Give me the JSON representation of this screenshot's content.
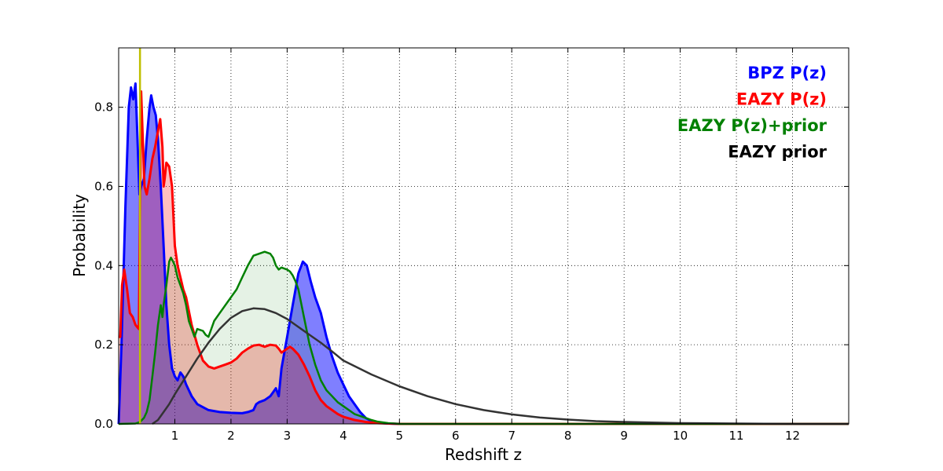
{
  "chart_data": {
    "type": "area",
    "title": "",
    "xlabel": "Redshift z",
    "ylabel": "Probability",
    "xlim": [
      0,
      13
    ],
    "ylim": [
      0,
      0.95
    ],
    "grid": true,
    "legend_position": "top-right",
    "x_ticks": [
      1,
      2,
      3,
      4,
      5,
      6,
      7,
      8,
      9,
      10,
      11,
      12
    ],
    "y_ticks": [
      0.0,
      0.2,
      0.4,
      0.6,
      0.8
    ],
    "y_tick_labels": [
      "0.0",
      "0.2",
      "0.4",
      "0.6",
      "0.8"
    ],
    "vertical_line": {
      "x": 0.38,
      "color": "#bfbf00"
    },
    "series": [
      {
        "name": "BPZ P(z)",
        "color": "#0000ff",
        "fill_alpha": 0.5,
        "filled": true,
        "points": [
          [
            0,
            0
          ],
          [
            0.05,
            0.2
          ],
          [
            0.12,
            0.55
          ],
          [
            0.18,
            0.8
          ],
          [
            0.22,
            0.85
          ],
          [
            0.26,
            0.82
          ],
          [
            0.3,
            0.86
          ],
          [
            0.34,
            0.7
          ],
          [
            0.37,
            0.58
          ],
          [
            0.4,
            0.6
          ],
          [
            0.45,
            0.62
          ],
          [
            0.5,
            0.72
          ],
          [
            0.55,
            0.8
          ],
          [
            0.58,
            0.83
          ],
          [
            0.62,
            0.8
          ],
          [
            0.66,
            0.78
          ],
          [
            0.7,
            0.72
          ],
          [
            0.75,
            0.6
          ],
          [
            0.8,
            0.45
          ],
          [
            0.85,
            0.3
          ],
          [
            0.9,
            0.2
          ],
          [
            0.95,
            0.14
          ],
          [
            1.0,
            0.12
          ],
          [
            1.05,
            0.11
          ],
          [
            1.1,
            0.13
          ],
          [
            1.15,
            0.12
          ],
          [
            1.2,
            0.1
          ],
          [
            1.3,
            0.07
          ],
          [
            1.4,
            0.05
          ],
          [
            1.6,
            0.035
          ],
          [
            1.8,
            0.03
          ],
          [
            2.0,
            0.028
          ],
          [
            2.2,
            0.027
          ],
          [
            2.3,
            0.03
          ],
          [
            2.4,
            0.035
          ],
          [
            2.45,
            0.05
          ],
          [
            2.5,
            0.055
          ],
          [
            2.6,
            0.06
          ],
          [
            2.7,
            0.07
          ],
          [
            2.75,
            0.08
          ],
          [
            2.8,
            0.09
          ],
          [
            2.85,
            0.07
          ],
          [
            2.9,
            0.14
          ],
          [
            3.0,
            0.22
          ],
          [
            3.1,
            0.3
          ],
          [
            3.2,
            0.38
          ],
          [
            3.28,
            0.41
          ],
          [
            3.35,
            0.4
          ],
          [
            3.42,
            0.36
          ],
          [
            3.5,
            0.32
          ],
          [
            3.6,
            0.28
          ],
          [
            3.7,
            0.22
          ],
          [
            3.8,
            0.17
          ],
          [
            3.9,
            0.13
          ],
          [
            4.0,
            0.1
          ],
          [
            4.1,
            0.07
          ],
          [
            4.2,
            0.05
          ],
          [
            4.3,
            0.03
          ],
          [
            4.4,
            0.015
          ],
          [
            4.5,
            0.007
          ],
          [
            4.6,
            0.003
          ],
          [
            4.8,
            0.001
          ],
          [
            5.0,
            0
          ],
          [
            13,
            0
          ]
        ]
      },
      {
        "name": "EAZY P(z)",
        "color": "#ff0000",
        "fill_alpha": 0.25,
        "filled": true,
        "points": [
          [
            0,
            0.22
          ],
          [
            0.03,
            0.22
          ],
          [
            0.06,
            0.35
          ],
          [
            0.1,
            0.39
          ],
          [
            0.15,
            0.34
          ],
          [
            0.2,
            0.28
          ],
          [
            0.25,
            0.27
          ],
          [
            0.3,
            0.25
          ],
          [
            0.36,
            0.24
          ],
          [
            0.4,
            0.84
          ],
          [
            0.43,
            0.72
          ],
          [
            0.46,
            0.6
          ],
          [
            0.5,
            0.58
          ],
          [
            0.55,
            0.62
          ],
          [
            0.6,
            0.67
          ],
          [
            0.65,
            0.7
          ],
          [
            0.7,
            0.74
          ],
          [
            0.74,
            0.77
          ],
          [
            0.78,
            0.7
          ],
          [
            0.8,
            0.6
          ],
          [
            0.82,
            0.62
          ],
          [
            0.85,
            0.66
          ],
          [
            0.9,
            0.65
          ],
          [
            0.95,
            0.6
          ],
          [
            1.0,
            0.45
          ],
          [
            1.05,
            0.4
          ],
          [
            1.1,
            0.37
          ],
          [
            1.15,
            0.34
          ],
          [
            1.2,
            0.32
          ],
          [
            1.3,
            0.25
          ],
          [
            1.4,
            0.2
          ],
          [
            1.5,
            0.16
          ],
          [
            1.6,
            0.145
          ],
          [
            1.7,
            0.14
          ],
          [
            1.8,
            0.145
          ],
          [
            1.9,
            0.15
          ],
          [
            2.0,
            0.155
          ],
          [
            2.1,
            0.165
          ],
          [
            2.2,
            0.18
          ],
          [
            2.3,
            0.19
          ],
          [
            2.4,
            0.198
          ],
          [
            2.5,
            0.2
          ],
          [
            2.6,
            0.195
          ],
          [
            2.7,
            0.2
          ],
          [
            2.8,
            0.198
          ],
          [
            2.85,
            0.19
          ],
          [
            2.9,
            0.18
          ],
          [
            3.0,
            0.19
          ],
          [
            3.05,
            0.195
          ],
          [
            3.1,
            0.19
          ],
          [
            3.2,
            0.175
          ],
          [
            3.3,
            0.15
          ],
          [
            3.4,
            0.12
          ],
          [
            3.5,
            0.085
          ],
          [
            3.6,
            0.06
          ],
          [
            3.7,
            0.045
          ],
          [
            3.8,
            0.035
          ],
          [
            3.9,
            0.025
          ],
          [
            4.0,
            0.018
          ],
          [
            4.2,
            0.01
          ],
          [
            4.4,
            0.005
          ],
          [
            4.6,
            0.002
          ],
          [
            5.0,
            0
          ],
          [
            13,
            0
          ]
        ]
      },
      {
        "name": "EAZY P(z)+prior",
        "color": "#008000",
        "fill_alpha": 0.1,
        "filled": true,
        "points": [
          [
            0,
            0
          ],
          [
            0.3,
            0.001
          ],
          [
            0.38,
            0.005
          ],
          [
            0.45,
            0.015
          ],
          [
            0.5,
            0.03
          ],
          [
            0.55,
            0.06
          ],
          [
            0.6,
            0.12
          ],
          [
            0.65,
            0.18
          ],
          [
            0.7,
            0.25
          ],
          [
            0.75,
            0.3
          ],
          [
            0.78,
            0.27
          ],
          [
            0.8,
            0.3
          ],
          [
            0.85,
            0.35
          ],
          [
            0.9,
            0.41
          ],
          [
            0.93,
            0.42
          ],
          [
            0.97,
            0.41
          ],
          [
            1.0,
            0.4
          ],
          [
            1.05,
            0.37
          ],
          [
            1.1,
            0.35
          ],
          [
            1.15,
            0.33
          ],
          [
            1.2,
            0.3
          ],
          [
            1.25,
            0.26
          ],
          [
            1.3,
            0.24
          ],
          [
            1.35,
            0.22
          ],
          [
            1.4,
            0.24
          ],
          [
            1.5,
            0.235
          ],
          [
            1.55,
            0.225
          ],
          [
            1.6,
            0.22
          ],
          [
            1.65,
            0.24
          ],
          [
            1.7,
            0.26
          ],
          [
            1.8,
            0.28
          ],
          [
            1.9,
            0.3
          ],
          [
            2.0,
            0.32
          ],
          [
            2.1,
            0.34
          ],
          [
            2.2,
            0.37
          ],
          [
            2.3,
            0.4
          ],
          [
            2.4,
            0.425
          ],
          [
            2.5,
            0.43
          ],
          [
            2.6,
            0.435
          ],
          [
            2.7,
            0.43
          ],
          [
            2.75,
            0.42
          ],
          [
            2.8,
            0.4
          ],
          [
            2.85,
            0.39
          ],
          [
            2.9,
            0.395
          ],
          [
            3.0,
            0.39
          ],
          [
            3.05,
            0.385
          ],
          [
            3.1,
            0.375
          ],
          [
            3.15,
            0.36
          ],
          [
            3.2,
            0.34
          ],
          [
            3.3,
            0.27
          ],
          [
            3.4,
            0.2
          ],
          [
            3.5,
            0.15
          ],
          [
            3.6,
            0.11
          ],
          [
            3.7,
            0.085
          ],
          [
            3.8,
            0.07
          ],
          [
            3.9,
            0.055
          ],
          [
            4.0,
            0.045
          ],
          [
            4.1,
            0.035
          ],
          [
            4.2,
            0.025
          ],
          [
            4.3,
            0.02
          ],
          [
            4.4,
            0.015
          ],
          [
            4.5,
            0.01
          ],
          [
            4.6,
            0.006
          ],
          [
            4.8,
            0.002
          ],
          [
            5.0,
            0
          ],
          [
            13,
            0
          ]
        ]
      },
      {
        "name": "EAZY prior",
        "color": "#333333",
        "fill_alpha": 0,
        "filled": false,
        "points": [
          [
            0.6,
            0
          ],
          [
            0.7,
            0.01
          ],
          [
            0.8,
            0.03
          ],
          [
            0.9,
            0.05
          ],
          [
            1.0,
            0.075
          ],
          [
            1.2,
            0.12
          ],
          [
            1.4,
            0.165
          ],
          [
            1.6,
            0.205
          ],
          [
            1.8,
            0.24
          ],
          [
            2.0,
            0.268
          ],
          [
            2.2,
            0.285
          ],
          [
            2.4,
            0.292
          ],
          [
            2.6,
            0.29
          ],
          [
            2.8,
            0.28
          ],
          [
            3.0,
            0.265
          ],
          [
            3.2,
            0.245
          ],
          [
            3.4,
            0.225
          ],
          [
            3.6,
            0.205
          ],
          [
            3.8,
            0.183
          ],
          [
            4.0,
            0.16
          ],
          [
            4.5,
            0.125
          ],
          [
            5.0,
            0.095
          ],
          [
            5.5,
            0.07
          ],
          [
            6.0,
            0.05
          ],
          [
            6.5,
            0.035
          ],
          [
            7.0,
            0.024
          ],
          [
            7.5,
            0.016
          ],
          [
            8.0,
            0.011
          ],
          [
            8.5,
            0.007
          ],
          [
            9.0,
            0.005
          ],
          [
            10.0,
            0.002
          ],
          [
            11.0,
            0.001
          ],
          [
            12.0,
            0
          ],
          [
            13,
            0
          ]
        ]
      }
    ]
  }
}
